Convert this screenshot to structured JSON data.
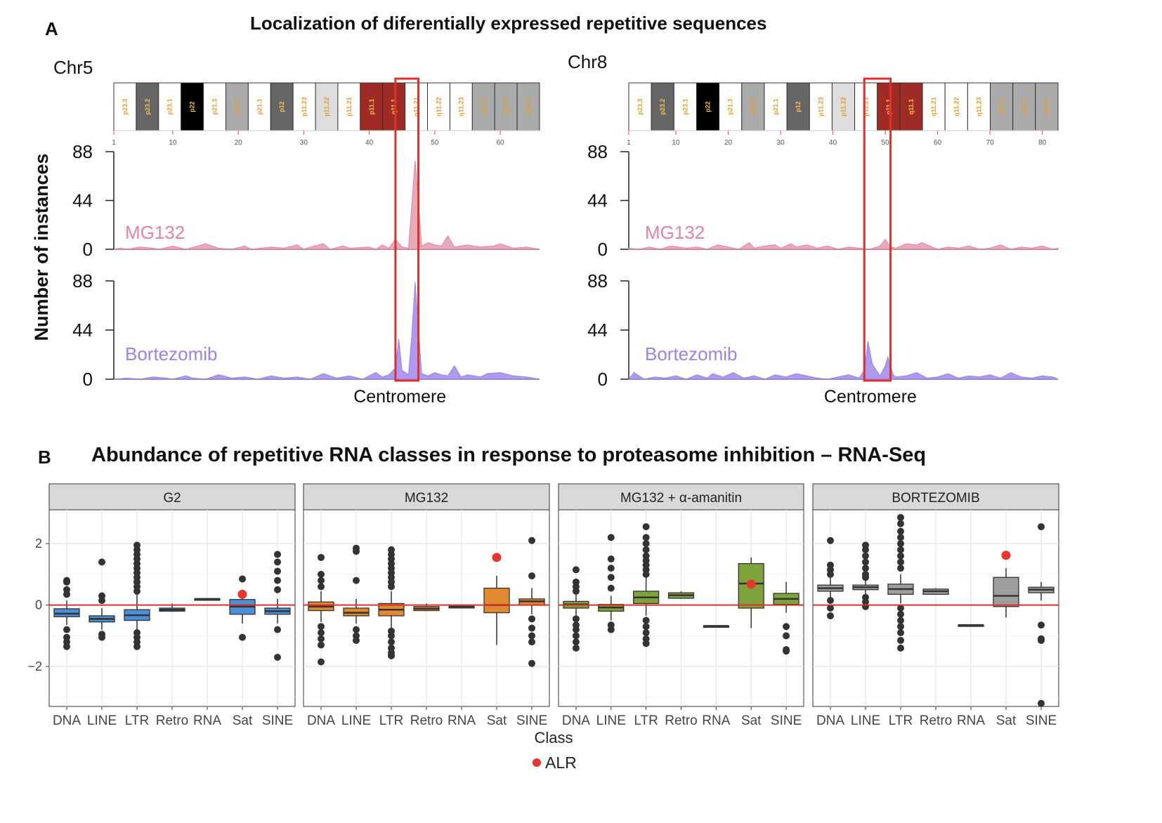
{
  "panelA": {
    "letter": "A",
    "title": "Localization of diferentially expressed repetitive sequences",
    "ylabel": "Number of instances",
    "centromere_label": "Centromere",
    "colors": {
      "mg132": "#e8839b",
      "mg132_fill": "#e6a1b3",
      "bortezomib": "#9b82e8",
      "bortezomib_fill": "#a48fee",
      "highlight": "#e0302a"
    }
  },
  "panelB": {
    "letter": "B",
    "title": "Abundance of repetitive RNA classes  in response to proteasome inhibition – RNA-Seq",
    "xlabel": "Class",
    "legend_label": "ALR",
    "legend_color": "#e8352e"
  },
  "chart_data": [
    {
      "type": "area",
      "chromosome": "Chr5",
      "bands": [
        "p23.3",
        "p23.2",
        "p23.1",
        "p22",
        "p21.3",
        "p21.2",
        "p21.1",
        "p12",
        "p11.23",
        "p11.22",
        "p11.21",
        "p11.1",
        "q11.1",
        "q11.21",
        "q11.22",
        "q11.23",
        "q12.1",
        "q12.2",
        "q12.3"
      ],
      "band_ticks": [
        1,
        10,
        20,
        30,
        40,
        50,
        60
      ],
      "xlim": [
        1,
        66
      ],
      "yticks": [
        0,
        44,
        88
      ],
      "ylim": [
        0,
        88
      ],
      "centromere_range": [
        44,
        47.5
      ],
      "series": [
        {
          "name": "MG132",
          "x": [
            1,
            2,
            3,
            5,
            7,
            8,
            10,
            12,
            15,
            17,
            19,
            21,
            22,
            25,
            27,
            29,
            30,
            31,
            33,
            34,
            36,
            37,
            40,
            41,
            42,
            43,
            44,
            45,
            46,
            47,
            48,
            49,
            50,
            51,
            52,
            53,
            55,
            57,
            59,
            60,
            62,
            64,
            66
          ],
          "values": [
            0,
            1,
            0,
            2,
            1,
            0,
            3,
            0,
            5,
            1,
            0,
            3,
            0,
            2,
            1,
            4,
            0,
            2,
            5,
            0,
            3,
            1,
            2,
            0,
            4,
            1,
            9,
            2,
            1,
            80,
            3,
            6,
            4,
            3,
            12,
            2,
            4,
            2,
            3,
            5,
            1,
            2,
            0
          ]
        },
        {
          "name": "Bortezomib",
          "x": [
            1,
            3,
            5,
            7,
            9,
            10,
            12,
            13,
            15,
            17,
            19,
            21,
            23,
            25,
            27,
            29,
            31,
            33,
            35,
            37,
            39,
            41,
            42,
            43,
            44,
            44.5,
            45,
            46,
            46.5,
            47,
            48,
            49,
            50,
            51,
            52,
            53,
            54,
            55,
            57,
            58,
            60,
            62,
            64,
            66
          ],
          "values": [
            0,
            1,
            0,
            2,
            1,
            0,
            3,
            1,
            0,
            4,
            1,
            2,
            0,
            3,
            1,
            2,
            0,
            5,
            1,
            3,
            0,
            6,
            2,
            4,
            10,
            36,
            8,
            4,
            40,
            87,
            5,
            3,
            6,
            4,
            3,
            12,
            2,
            4,
            2,
            5,
            6,
            3,
            2,
            0
          ]
        }
      ]
    },
    {
      "type": "area",
      "chromosome": "Chr8",
      "bands": [
        "p23.3",
        "p23.2",
        "p23.1",
        "p22",
        "p21.3",
        "p21.2",
        "p21.1",
        "p12",
        "p11.23",
        "p11.22",
        "p11.21",
        "p11.1",
        "q11.1",
        "q11.21",
        "q11.22",
        "q11.23",
        "q12.1",
        "q12.2",
        "q12.3"
      ],
      "band_ticks": [
        1,
        10,
        20,
        30,
        40,
        50,
        60,
        70,
        80
      ],
      "xlim": [
        1,
        83
      ],
      "yticks": [
        0,
        44,
        88
      ],
      "ylim": [
        0,
        88
      ],
      "centromere_range": [
        46,
        51
      ],
      "series": [
        {
          "name": "MG132",
          "x": [
            1,
            3,
            5,
            7,
            9,
            12,
            14,
            16,
            18,
            20,
            22,
            24,
            25,
            27,
            29,
            30,
            32,
            33,
            35,
            37,
            39,
            41,
            43,
            45,
            47,
            49,
            50,
            51,
            52,
            54,
            56,
            57,
            60,
            62,
            64,
            66,
            68,
            70,
            72,
            74,
            76,
            78,
            80,
            82,
            83
          ],
          "values": [
            1,
            0,
            2,
            0,
            3,
            1,
            2,
            0,
            4,
            2,
            0,
            6,
            1,
            3,
            4,
            1,
            5,
            2,
            4,
            1,
            3,
            0,
            2,
            1,
            0,
            3,
            9,
            2,
            1,
            5,
            4,
            6,
            0,
            2,
            1,
            3,
            0,
            1,
            4,
            0,
            2,
            1,
            3,
            0,
            1
          ]
        },
        {
          "name": "Bortezomib",
          "x": [
            1,
            2,
            4,
            6,
            8,
            10,
            12,
            14,
            16,
            17,
            19,
            21,
            23,
            25,
            27,
            29,
            31,
            33,
            35,
            37,
            39,
            41,
            43,
            45,
            46,
            46.7,
            47.5,
            48,
            49,
            50,
            50.5,
            51.5,
            52,
            54,
            56,
            58,
            60,
            62,
            64,
            66,
            68,
            70,
            72,
            74,
            76,
            78,
            80,
            82,
            83
          ],
          "values": [
            0,
            6,
            0,
            2,
            1,
            3,
            0,
            4,
            1,
            5,
            2,
            6,
            1,
            3,
            0,
            4,
            2,
            5,
            3,
            1,
            0,
            2,
            4,
            1,
            8,
            34,
            14,
            10,
            3,
            12,
            20,
            4,
            2,
            3,
            6,
            1,
            2,
            5,
            1,
            3,
            2,
            4,
            1,
            6,
            2,
            1,
            3,
            2,
            0
          ]
        }
      ]
    },
    {
      "type": "box",
      "xlabel": "Class",
      "yticks": [
        -2,
        0,
        2
      ],
      "ylim": [
        -3.3,
        3.1
      ],
      "categories": [
        "DNA",
        "LINE",
        "LTR",
        "Retro",
        "RNA",
        "Sat",
        "SINE"
      ],
      "facets": [
        {
          "name": "G2",
          "color": "#4a8fd8",
          "boxes": [
            {
              "q1": -0.38,
              "median": -0.28,
              "q3": -0.12,
              "lo": -0.65,
              "hi": 0.15,
              "outliers": [
                0.8,
                0.75,
                0.5,
                0.35,
                -0.8,
                -1.05,
                -1.2,
                -1.35
              ]
            },
            {
              "q1": -0.55,
              "median": -0.45,
              "q3": -0.35,
              "lo": -0.8,
              "hi": -0.1,
              "outliers": [
                1.4,
                0.3,
                0.15,
                -0.95,
                -1.05
              ]
            },
            {
              "q1": -0.5,
              "median": -0.33,
              "q3": -0.15,
              "lo": -0.85,
              "hi": 0.35,
              "outliers": [
                1.95,
                1.8,
                1.65,
                1.5,
                1.35,
                1.2,
                1.05,
                0.9,
                0.75,
                0.6,
                0.45,
                -0.9,
                -1.05,
                -1.2,
                -1.35
              ]
            },
            {
              "q1": -0.2,
              "median": -0.15,
              "q3": -0.1,
              "lo": -0.22,
              "hi": 0.05,
              "outliers": []
            },
            {
              "q1": 0.2,
              "median": 0.2,
              "q3": 0.2,
              "lo": 0.2,
              "hi": 0.2,
              "outliers": []
            },
            {
              "q1": -0.3,
              "median": -0.05,
              "q3": 0.18,
              "lo": -0.6,
              "hi": 0.5,
              "outliers": [
                0.85,
                -1.05
              ]
            },
            {
              "q1": -0.3,
              "median": -0.2,
              "q3": -0.1,
              "lo": -0.6,
              "hi": 0.2,
              "outliers": [
                1.65,
                1.4,
                1.1,
                0.8,
                0.5,
                -0.8,
                -1.7
              ]
            }
          ],
          "alr": 0.35
        },
        {
          "name": "MG132",
          "color": "#e0892e",
          "boxes": [
            {
              "q1": -0.18,
              "median": -0.05,
              "q3": 0.1,
              "lo": -0.55,
              "hi": 0.45,
              "outliers": [
                1.55,
                1.0,
                0.8,
                0.6,
                -0.7,
                -0.9,
                -1.1,
                -1.3,
                -1.85
              ]
            },
            {
              "q1": -0.35,
              "median": -0.25,
              "q3": -0.1,
              "lo": -0.6,
              "hi": 0.2,
              "outliers": [
                1.85,
                1.75,
                0.8,
                -0.8,
                -1.0,
                -1.15
              ]
            },
            {
              "q1": -0.35,
              "median": -0.15,
              "q3": 0.05,
              "lo": -0.8,
              "hi": 0.45,
              "outliers": [
                1.8,
                1.65,
                1.5,
                1.35,
                1.2,
                1.05,
                0.9,
                0.75,
                0.6,
                -0.85,
                -1.0,
                -1.2,
                -1.4,
                -1.55,
                -1.65
              ]
            },
            {
              "q1": -0.18,
              "median": -0.12,
              "q3": -0.05,
              "lo": -0.2,
              "hi": 0.05,
              "outliers": []
            },
            {
              "q1": -0.05,
              "median": -0.05,
              "q3": -0.05,
              "lo": -0.05,
              "hi": -0.05,
              "outliers": []
            },
            {
              "q1": -0.25,
              "median": 0.0,
              "q3": 0.55,
              "lo": -1.3,
              "hi": 0.95,
              "outliers": []
            },
            {
              "q1": 0.0,
              "median": 0.12,
              "q3": 0.2,
              "lo": -0.3,
              "hi": 0.55,
              "outliers": [
                2.1,
                0.95,
                -0.45,
                -0.75,
                -1.0,
                -1.2,
                -1.9
              ]
            }
          ],
          "alr": 1.55
        },
        {
          "name": "MG132 + α-amanitin",
          "color": "#7fa33c",
          "boxes": [
            {
              "q1": -0.1,
              "median": 0.02,
              "q3": 0.12,
              "lo": -0.4,
              "hi": 0.4,
              "outliers": [
                1.15,
                0.75,
                0.6,
                0.45,
                -0.45,
                -0.65,
                -0.8,
                -1.0,
                -1.2,
                -1.4
              ]
            },
            {
              "q1": -0.2,
              "median": -0.08,
              "q3": 0.02,
              "lo": -0.5,
              "hi": 0.3,
              "outliers": [
                2.2,
                1.5,
                1.2,
                0.9,
                0.55,
                -0.65,
                -0.8
              ]
            },
            {
              "q1": 0.05,
              "median": 0.25,
              "q3": 0.45,
              "lo": -0.35,
              "hi": 0.95,
              "outliers": [
                2.55,
                2.2,
                2.0,
                1.8,
                1.6,
                1.45,
                1.3,
                1.15,
                1.0,
                -0.5,
                -0.7,
                -0.9,
                -1.1,
                -1.25
              ]
            },
            {
              "q1": 0.22,
              "median": 0.32,
              "q3": 0.4,
              "lo": 0.2,
              "hi": 0.45,
              "outliers": []
            },
            {
              "q1": -0.68,
              "median": -0.68,
              "q3": -0.68,
              "lo": -0.68,
              "hi": -0.68,
              "outliers": []
            },
            {
              "q1": -0.1,
              "median": 0.7,
              "q3": 1.35,
              "lo": -0.75,
              "hi": 1.55,
              "outliers": []
            },
            {
              "q1": 0.02,
              "median": 0.2,
              "q3": 0.38,
              "lo": -0.25,
              "hi": 0.75,
              "outliers": [
                -0.7,
                -1.0,
                -1.45,
                -1.5
              ]
            }
          ],
          "alr": 0.68
        },
        {
          "name": "BORTEZOMIB",
          "color": "#9e9e9e",
          "boxes": [
            {
              "q1": 0.45,
              "median": 0.55,
              "q3": 0.65,
              "lo": 0.2,
              "hi": 0.95,
              "outliers": [
                2.1,
                1.3,
                1.15,
                1.0,
                0.15,
                -0.1,
                -0.35
              ]
            },
            {
              "q1": 0.5,
              "median": 0.58,
              "q3": 0.65,
              "lo": 0.3,
              "hi": 0.85,
              "outliers": [
                1.95,
                1.8,
                1.6,
                1.4,
                1.2,
                1.0,
                0.9,
                0.25,
                0.1,
                -0.05
              ]
            },
            {
              "q1": 0.35,
              "median": 0.52,
              "q3": 0.68,
              "lo": 0.05,
              "hi": 1.0,
              "outliers": [
                2.85,
                2.65,
                2.4,
                2.2,
                2.0,
                1.8,
                1.6,
                1.4,
                1.2,
                -0.1,
                -0.3,
                -0.5,
                -0.7,
                -0.9,
                -1.15,
                -1.4
              ]
            },
            {
              "q1": 0.35,
              "median": 0.45,
              "q3": 0.52,
              "lo": 0.33,
              "hi": 0.55,
              "outliers": []
            },
            {
              "q1": -0.65,
              "median": -0.65,
              "q3": -0.65,
              "lo": -0.65,
              "hi": -0.65,
              "outliers": []
            },
            {
              "q1": -0.05,
              "median": 0.3,
              "q3": 0.9,
              "lo": -0.4,
              "hi": 1.2,
              "outliers": []
            },
            {
              "q1": 0.4,
              "median": 0.5,
              "q3": 0.58,
              "lo": 0.15,
              "hi": 0.75,
              "outliers": [
                2.55,
                -0.65,
                -1.1,
                -1.15,
                -3.2
              ]
            }
          ],
          "alr": 1.62
        }
      ]
    }
  ]
}
